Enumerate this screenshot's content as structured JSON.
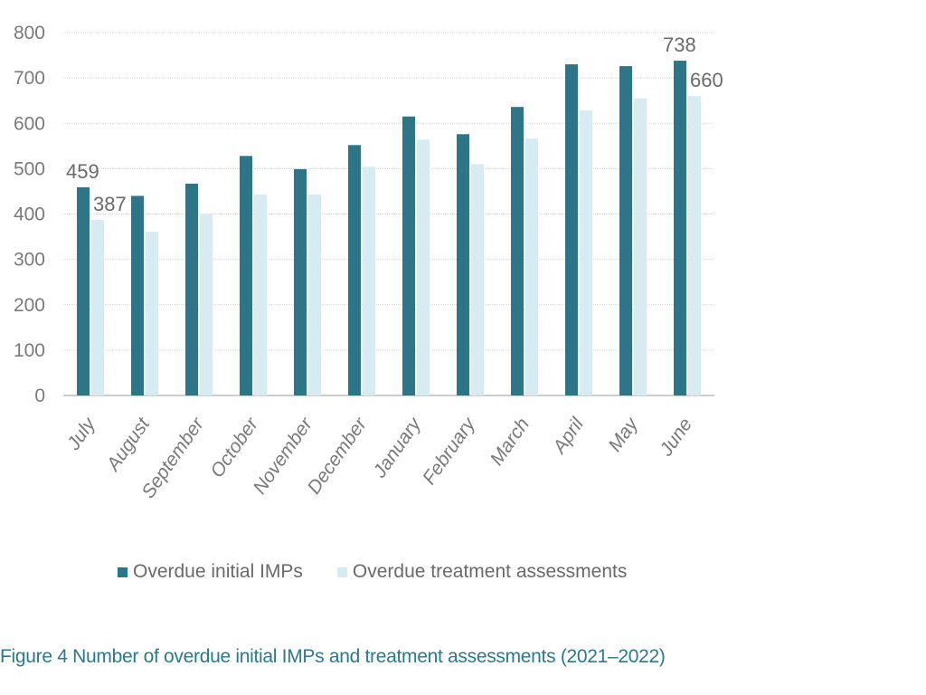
{
  "chart_data": {
    "type": "bar",
    "title": "",
    "xlabel": "",
    "ylabel": "",
    "ylim": [
      0,
      800
    ],
    "yticks": [
      0,
      100,
      200,
      300,
      400,
      500,
      600,
      700,
      800
    ],
    "grid": true,
    "legend_position": "bottom",
    "categories": [
      "July",
      "August",
      "September",
      "October",
      "November",
      "December",
      "January",
      "February",
      "March",
      "April",
      "May",
      "June"
    ],
    "series": [
      {
        "name": "Overdue initial IMPs",
        "color": "#2e7588",
        "values": [
          459,
          440,
          467,
          528,
          499,
          552,
          615,
          576,
          636,
          730,
          726,
          738
        ]
      },
      {
        "name": "Overdue treatment assessments",
        "color": "#d6ecf2",
        "values": [
          387,
          361,
          400,
          443,
          443,
          504,
          564,
          510,
          566,
          628,
          655,
          660
        ]
      }
    ],
    "data_labels": [
      {
        "series": 0,
        "category": "July",
        "text": "459"
      },
      {
        "series": 1,
        "category": "July",
        "text": "387"
      },
      {
        "series": 0,
        "category": "June",
        "text": "738"
      },
      {
        "series": 1,
        "category": "June",
        "text": "660"
      }
    ]
  },
  "caption": "Figure 4 Number of overdue initial IMPs and treatment assessments (2021–2022)"
}
